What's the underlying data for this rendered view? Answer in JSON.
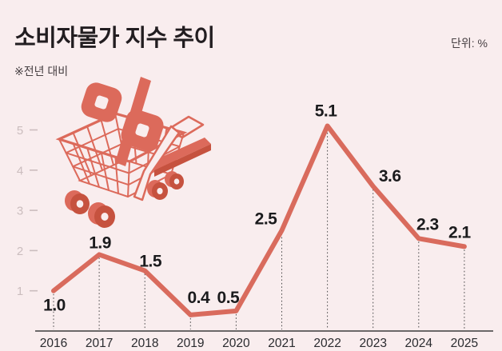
{
  "header": {
    "title": "소비자물가 지수 추이",
    "unit_label": "단위: %",
    "note": "※전년 대비"
  },
  "illustration": {
    "name": "shopping-cart-with-percent-sign",
    "primary_color": "#DC6A5B",
    "dark_color": "#C6523F",
    "background_color": "#F9EDEE"
  },
  "chart_data": {
    "type": "line",
    "title": "소비자물가 지수 추이",
    "unit": "%",
    "note": "※전년 대비",
    "categories": [
      "2016",
      "2017",
      "2018",
      "2019",
      "2020",
      "2021",
      "2022",
      "2023",
      "2024",
      "2025"
    ],
    "values": [
      1.0,
      1.9,
      1.5,
      0.4,
      0.5,
      2.5,
      5.1,
      3.6,
      2.3,
      2.1
    ],
    "value_labels": [
      "1.0",
      "1.9",
      "1.5",
      "0.4",
      "0.5",
      "2.5",
      "5.1",
      "3.6",
      "2.3",
      "2.1"
    ],
    "y_ticks": [
      1,
      2,
      3,
      4,
      5
    ],
    "ylim": [
      0,
      5.5
    ],
    "ylabel": "",
    "xlabel": "",
    "grid": "off",
    "leader_lines": "dotted-vertical",
    "legend": "none",
    "line_color": "#D96B5D",
    "background_color": "#F9EDEE",
    "axis_color": "#3C3C3C",
    "tick_label_color": "#CBBDBE"
  }
}
